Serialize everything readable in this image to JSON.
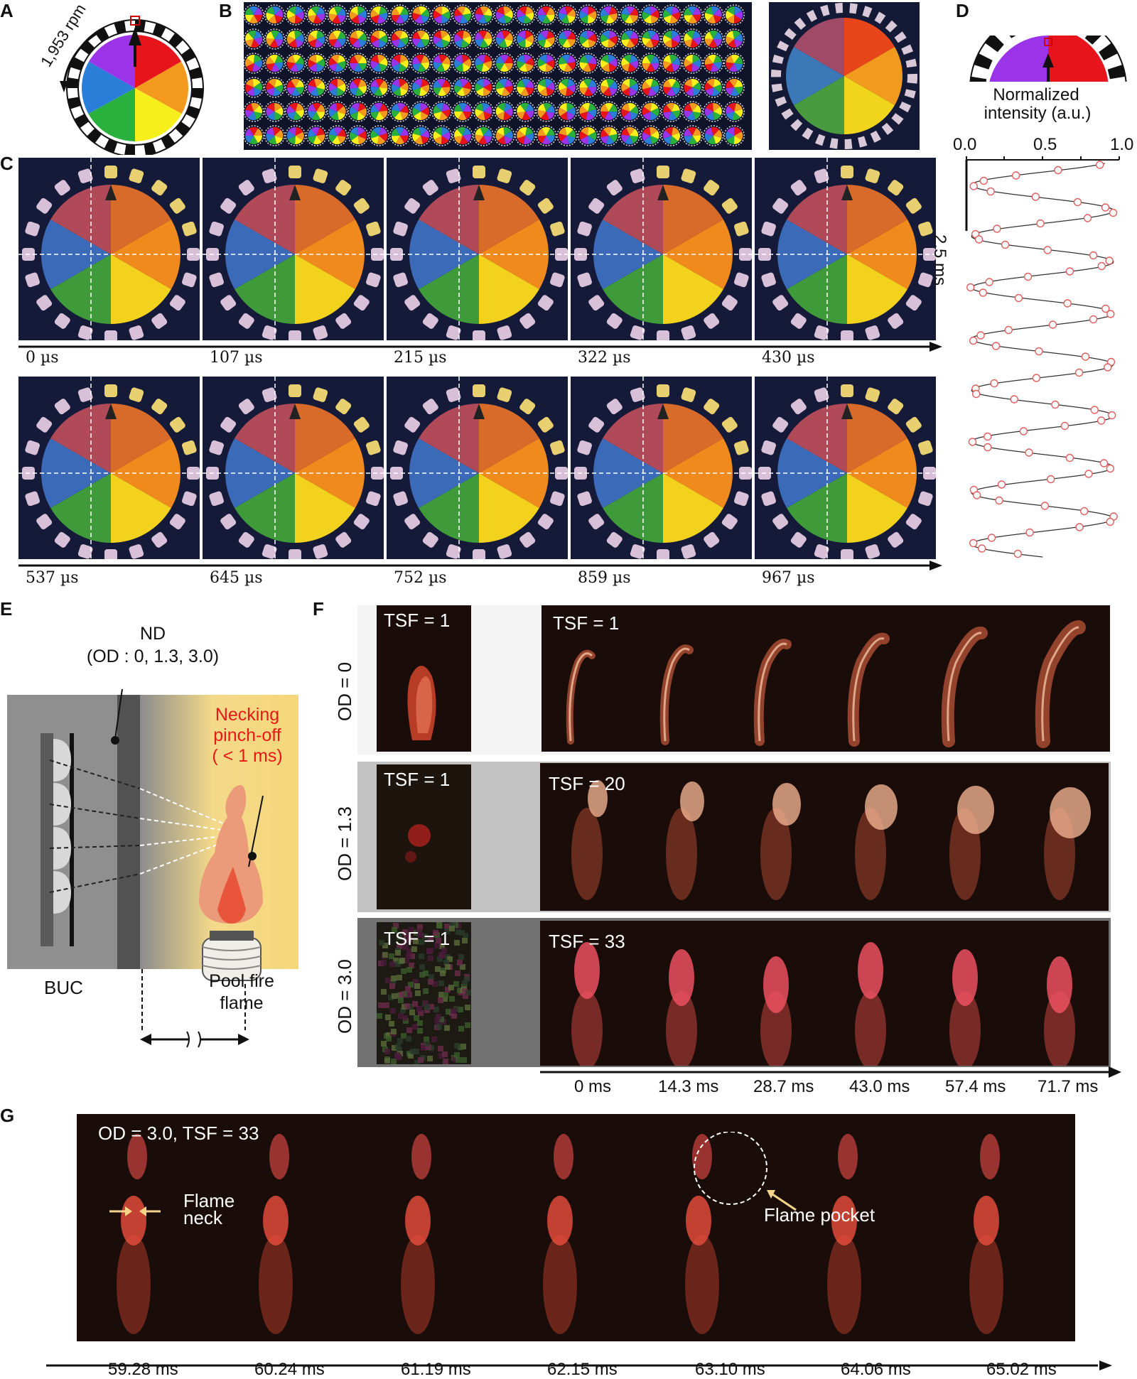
{
  "panels": {
    "a": {
      "label": "A",
      "rpm": "1,953 rpm"
    },
    "b": {
      "label": "B"
    },
    "c": {
      "label": "C",
      "row1_times": [
        "0 µs",
        "107 µs",
        "215 µs",
        "322 µs",
        "430 µs"
      ],
      "row2_times": [
        "537 µs",
        "645 µs",
        "752 µs",
        "859 µs",
        "967 µs"
      ]
    },
    "d": {
      "label": "D",
      "title_line1": "Normalized",
      "title_line2": "intensity (a.u.)",
      "ticks": [
        "0.0",
        "0.5",
        "1.0"
      ],
      "scale_bar": "2.5 ms"
    },
    "e": {
      "label": "E",
      "nd_line1": "ND",
      "nd_line2": "(OD : 0, 1.3, 3.0)",
      "necking_line1": "Necking",
      "necking_line2": "pinch-off",
      "necking_line3": "( < 1 ms)",
      "buc": "BUC",
      "pool_line1": "Pool fire",
      "pool_line2": "flame"
    },
    "f": {
      "label": "F",
      "rows": [
        {
          "od": "OD = 0",
          "tsf_left": "TSF = 1",
          "tsf_right": "TSF = 1"
        },
        {
          "od": "OD = 1.3",
          "tsf_left": "TSF = 1",
          "tsf_right": "TSF = 20"
        },
        {
          "od": "OD = 3.0",
          "tsf_left": "TSF = 1",
          "tsf_right": "TSF = 33"
        }
      ],
      "times": [
        "0 ms",
        "14.3 ms",
        "28.7 ms",
        "43.0 ms",
        "57.4 ms",
        "71.7 ms"
      ]
    },
    "g": {
      "label": "G",
      "header": "OD  = 3.0,  TSF = 33",
      "neck_line1": "Flame",
      "neck_line2": "neck",
      "pocket": "Flame pocket",
      "times": [
        "59.28 ms",
        "60.24 ms",
        "61.19 ms",
        "62.15 ms",
        "63.10 ms",
        "64.06 ms",
        "65.02 ms"
      ]
    }
  },
  "colors": {
    "red": "#e8141b",
    "orange": "#f39a1e",
    "yellow": "#f7ef1c",
    "green": "#2ab03c",
    "blue": "#2b7ed8",
    "purple": "#9b34e8",
    "flame": "#e05040",
    "dot": "#e06060"
  }
}
